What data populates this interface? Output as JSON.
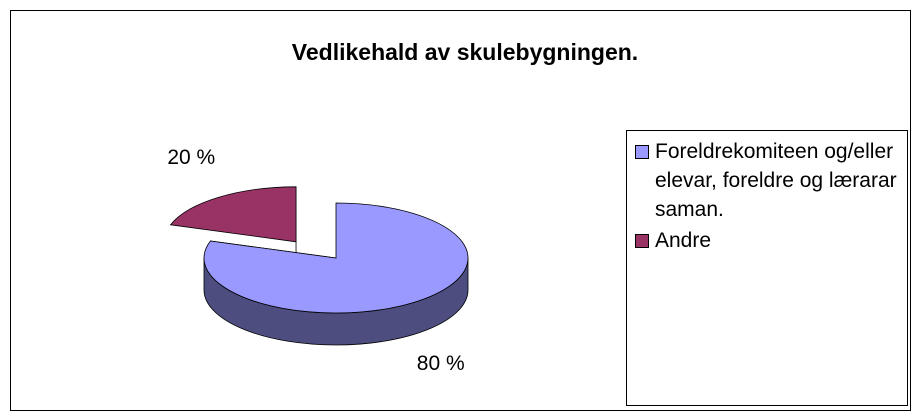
{
  "chart_data": {
    "type": "pie",
    "title": "Vedlikehald av skulebygningen.",
    "categories": [
      "Foreldrekomiteen og/eller elevar, foreldre og lærarar saman.",
      "Andre"
    ],
    "values": [
      80,
      20
    ],
    "value_labels": [
      "80 %",
      "20 %"
    ],
    "colors": [
      "#9999ff",
      "#993366"
    ],
    "legend": "right"
  }
}
